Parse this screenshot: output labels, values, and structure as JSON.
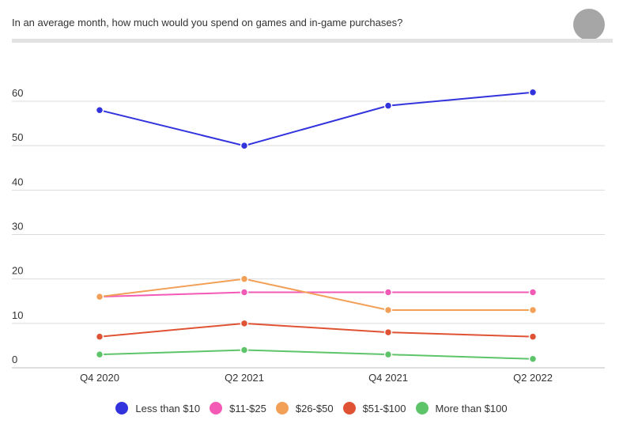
{
  "question": "In an average month, how much would you spend on games and in-game purchases?",
  "chart_data": {
    "type": "line",
    "title": "",
    "categories": [
      "Q4 2020",
      "Q2 2021",
      "Q4 2021",
      "Q2 2022"
    ],
    "ylim": [
      0,
      60
    ],
    "yticks": [
      "0",
      "10",
      "20",
      "30",
      "40",
      "50",
      "60"
    ],
    "grid": true,
    "legend_position": "bottom",
    "series": [
      {
        "name": "Less than $10",
        "color": "#3333dd",
        "values": [
          58,
          50,
          59,
          62
        ]
      },
      {
        "name": "$11-$25",
        "color": "#f25ab5",
        "values": [
          16,
          17,
          17,
          17
        ]
      },
      {
        "name": "$26-$50",
        "color": "#f2a057",
        "values": [
          16,
          20,
          13,
          13
        ]
      },
      {
        "name": "$51-$100",
        "color": "#df5334",
        "values": [
          7,
          10,
          8,
          7
        ]
      },
      {
        "name": "More than $100",
        "color": "#5ec46a",
        "values": [
          3,
          4,
          3,
          2
        ]
      }
    ]
  }
}
